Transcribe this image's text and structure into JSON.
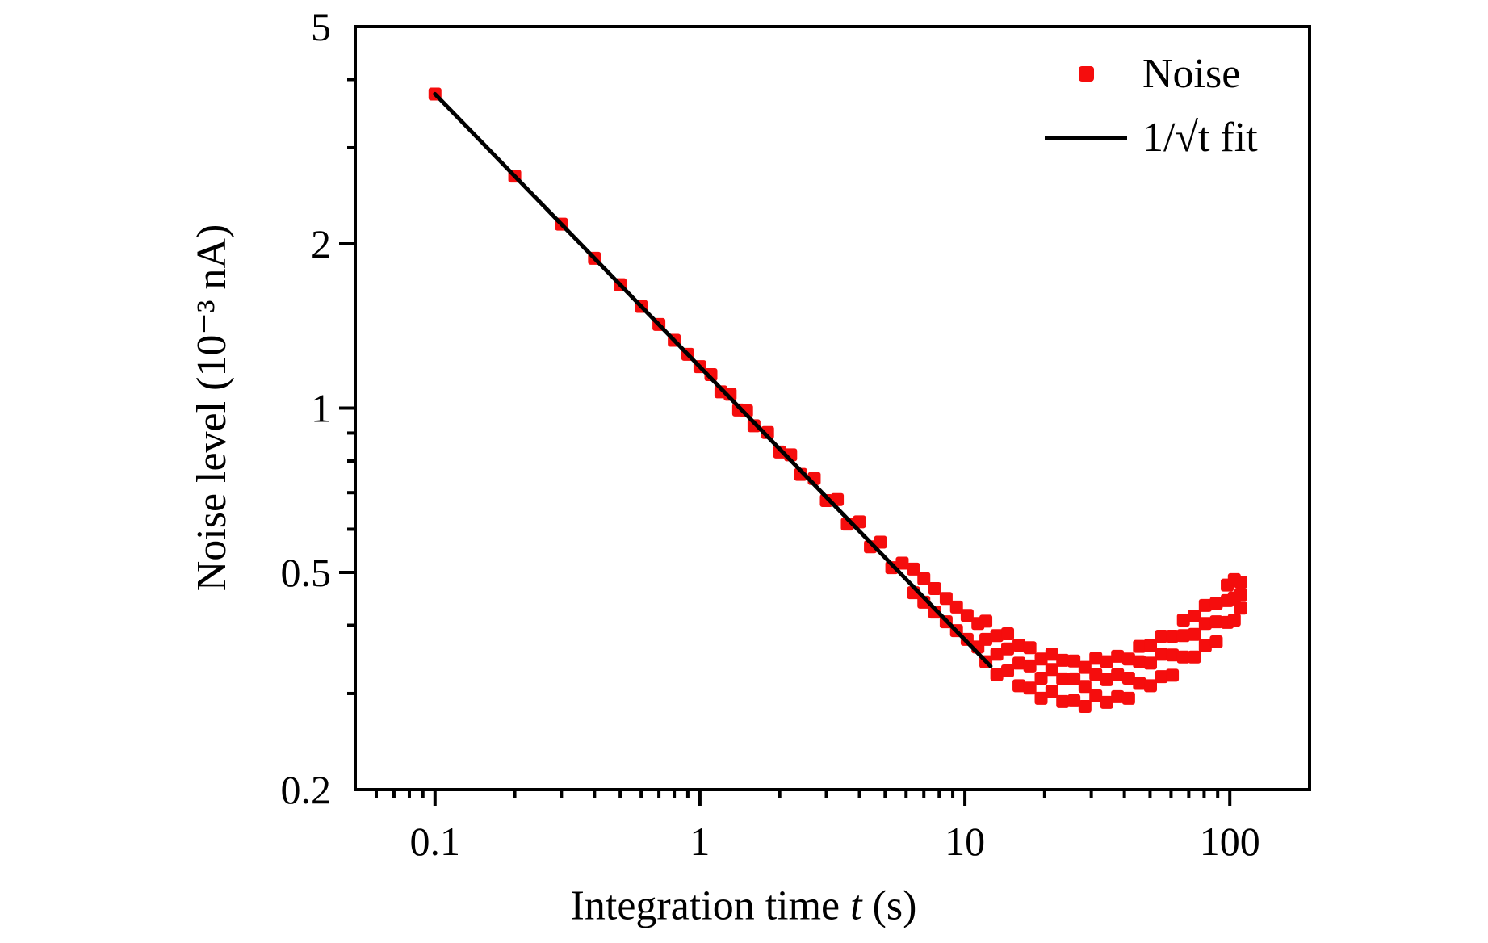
{
  "chart_data": {
    "type": "scatter",
    "background": "#ffffff",
    "x_axis": {
      "label": "Integration time t (s)",
      "label_prefix": "Integration time ",
      "label_italic": "t",
      "label_suffix": " (s)",
      "scale": "log",
      "range": [
        0.05,
        200
      ],
      "major_ticks": [
        0.1,
        1,
        10,
        100
      ],
      "tick_labels": [
        "0.1",
        "1",
        "10",
        "100"
      ]
    },
    "y_axis": {
      "label": "Noise level (10⁻³ nA)",
      "scale": "log",
      "range": [
        0.2,
        5
      ],
      "major_ticks": [
        5,
        2,
        1,
        0.5,
        0.2
      ],
      "tick_labels": [
        "5",
        "2",
        "1",
        "0.5",
        "0.2"
      ]
    },
    "legend": [
      {
        "label": "Noise",
        "marker": "square",
        "color": "#f50d0d"
      },
      {
        "label": "1/√t fit",
        "marker": "line",
        "color": "#000000"
      }
    ],
    "series": {
      "name": "Noise",
      "marker": "square",
      "marker_size": 16,
      "color": "#f50d0d",
      "points": [
        [
          0.1,
          3.763
        ],
        [
          0.2,
          2.661
        ],
        [
          0.3,
          2.173
        ],
        [
          0.4,
          1.882
        ],
        [
          0.5,
          1.683
        ],
        [
          0.6,
          1.536
        ],
        [
          0.7,
          1.423
        ],
        [
          0.8,
          1.331
        ],
        [
          0.9,
          1.255
        ],
        [
          1.0,
          1.191
        ],
        [
          1.1,
          1.152
        ],
        [
          1.2,
          1.071
        ],
        [
          1.3,
          1.06
        ],
        [
          1.4,
          0.992
        ],
        [
          1.5,
          0.988
        ],
        [
          1.6,
          0.928
        ],
        [
          1.8,
          0.902
        ],
        [
          2.0,
          0.831
        ],
        [
          2.2,
          0.821
        ],
        [
          2.4,
          0.756
        ],
        [
          2.7,
          0.743
        ],
        [
          3.0,
          0.677
        ],
        [
          3.3,
          0.68
        ],
        [
          3.6,
          0.613
        ],
        [
          4.0,
          0.619
        ],
        [
          4.4,
          0.557
        ],
        [
          4.8,
          0.568
        ],
        [
          5.3,
          0.51
        ],
        [
          5.8,
          0.52
        ],
        [
          6.4,
          0.459
        ],
        [
          6.4,
          0.507
        ],
        [
          7.0,
          0.441
        ],
        [
          7.0,
          0.487
        ],
        [
          7.7,
          0.423
        ],
        [
          7.7,
          0.467
        ],
        [
          8.5,
          0.406
        ],
        [
          8.5,
          0.448
        ],
        [
          9.3,
          0.391
        ],
        [
          9.3,
          0.432
        ],
        [
          10.2,
          0.377
        ],
        [
          10.2,
          0.417
        ],
        [
          11.2,
          0.365
        ],
        [
          11.2,
          0.403
        ],
        [
          12,
          0.343
        ],
        [
          12,
          0.377
        ],
        [
          12,
          0.407
        ],
        [
          13.2,
          0.325
        ],
        [
          13.2,
          0.354
        ],
        [
          13.2,
          0.383
        ],
        [
          14.5,
          0.33
        ],
        [
          14.5,
          0.362
        ],
        [
          14.5,
          0.386
        ],
        [
          16,
          0.31
        ],
        [
          16,
          0.341
        ],
        [
          16,
          0.368
        ],
        [
          17.6,
          0.307
        ],
        [
          17.6,
          0.337
        ],
        [
          17.6,
          0.364
        ],
        [
          19.4,
          0.294
        ],
        [
          19.4,
          0.32
        ],
        [
          19.4,
          0.347
        ],
        [
          21.3,
          0.303
        ],
        [
          21.3,
          0.332
        ],
        [
          21.3,
          0.354
        ],
        [
          23.4,
          0.29
        ],
        [
          23.4,
          0.319
        ],
        [
          23.4,
          0.345
        ],
        [
          25.8,
          0.291
        ],
        [
          25.8,
          0.319
        ],
        [
          25.8,
          0.344
        ],
        [
          28.4,
          0.284
        ],
        [
          28.4,
          0.309
        ],
        [
          28.4,
          0.335
        ],
        [
          31.2,
          0.297
        ],
        [
          31.2,
          0.325
        ],
        [
          31.2,
          0.348
        ],
        [
          34.3,
          0.289
        ],
        [
          34.3,
          0.318
        ],
        [
          34.3,
          0.343
        ],
        [
          37.7,
          0.296
        ],
        [
          37.7,
          0.325
        ],
        [
          37.7,
          0.351
        ],
        [
          41.5,
          0.294
        ],
        [
          41.5,
          0.32
        ],
        [
          41.5,
          0.347
        ],
        [
          45.6,
          0.313
        ],
        [
          45.6,
          0.343
        ],
        [
          45.6,
          0.366
        ],
        [
          50.2,
          0.31
        ],
        [
          50.2,
          0.341
        ],
        [
          50.2,
          0.368
        ],
        [
          55.2,
          0.322
        ],
        [
          55.2,
          0.354
        ],
        [
          55.2,
          0.382
        ],
        [
          60.7,
          0.324
        ],
        [
          60.7,
          0.353
        ],
        [
          60.7,
          0.382
        ],
        [
          66.8,
          0.35
        ],
        [
          66.8,
          0.383
        ],
        [
          66.8,
          0.409
        ],
        [
          73.5,
          0.35
        ],
        [
          73.5,
          0.385
        ],
        [
          73.5,
          0.416
        ],
        [
          80.8,
          0.367
        ],
        [
          80.8,
          0.403
        ],
        [
          80.8,
          0.435
        ],
        [
          88.9,
          0.373
        ],
        [
          88.9,
          0.406
        ],
        [
          88.9,
          0.439
        ],
        [
          97.8,
          0.405
        ],
        [
          97.8,
          0.444
        ],
        [
          97.8,
          0.474
        ],
        [
          104,
          0.409
        ],
        [
          104,
          0.449
        ],
        [
          104,
          0.485
        ],
        [
          110,
          0.43
        ],
        [
          110,
          0.455
        ],
        [
          110,
          0.48
        ]
      ]
    },
    "fit": {
      "name": "1/√t fit",
      "formula": "A/sqrt(t)",
      "amplitude": 1.19,
      "t_start": 0.1,
      "t_end": 12.5,
      "color": "#000000",
      "line_width": 5
    }
  }
}
